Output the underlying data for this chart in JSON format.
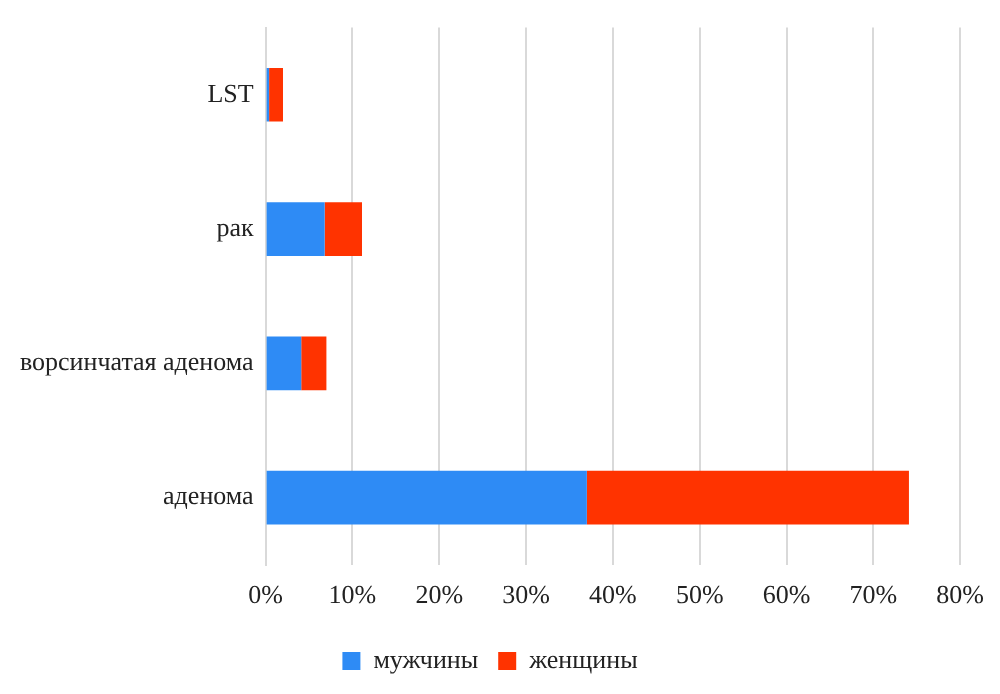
{
  "chart_data": {
    "type": "bar",
    "orientation": "horizontal",
    "stacked": true,
    "categories": [
      "LST",
      "рак",
      "ворсинчатая аденома",
      "аденома"
    ],
    "series": [
      {
        "name": "мужчины",
        "color": "#2e8bf5",
        "values": [
          0.4,
          6.8,
          4.1,
          37.0
        ]
      },
      {
        "name": "женщины",
        "color": "#ff3300",
        "values": [
          1.6,
          4.3,
          2.9,
          37.1
        ]
      }
    ],
    "xlim": [
      0,
      80
    ],
    "xticks": [
      {
        "value": 0,
        "label": "0%"
      },
      {
        "value": 10,
        "label": "10%"
      },
      {
        "value": 20,
        "label": "20%"
      },
      {
        "value": 30,
        "label": "30%"
      },
      {
        "value": 40,
        "label": "40%"
      },
      {
        "value": 50,
        "label": "50%"
      },
      {
        "value": 60,
        "label": "60%"
      },
      {
        "value": 70,
        "label": "70%"
      },
      {
        "value": 80,
        "label": "80%"
      }
    ],
    "grid": "x",
    "legend": "bottom"
  }
}
